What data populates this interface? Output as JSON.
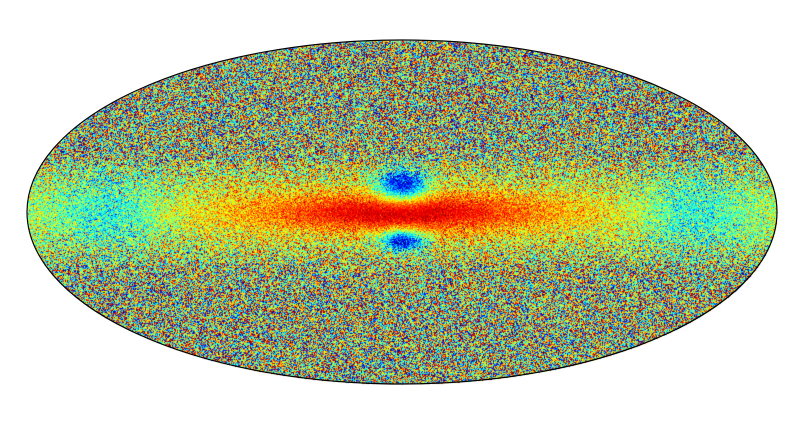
{
  "image": {
    "projection": "mollweide",
    "colormap": "jet",
    "background": "#ffffff",
    "outline_color": "#000000",
    "palette": [
      "#00007f",
      "#0000ff",
      "#007fff",
      "#00ffff",
      "#7fff7f",
      "#ffff00",
      "#ff7f00",
      "#ff0000",
      "#7f0000"
    ]
  }
}
